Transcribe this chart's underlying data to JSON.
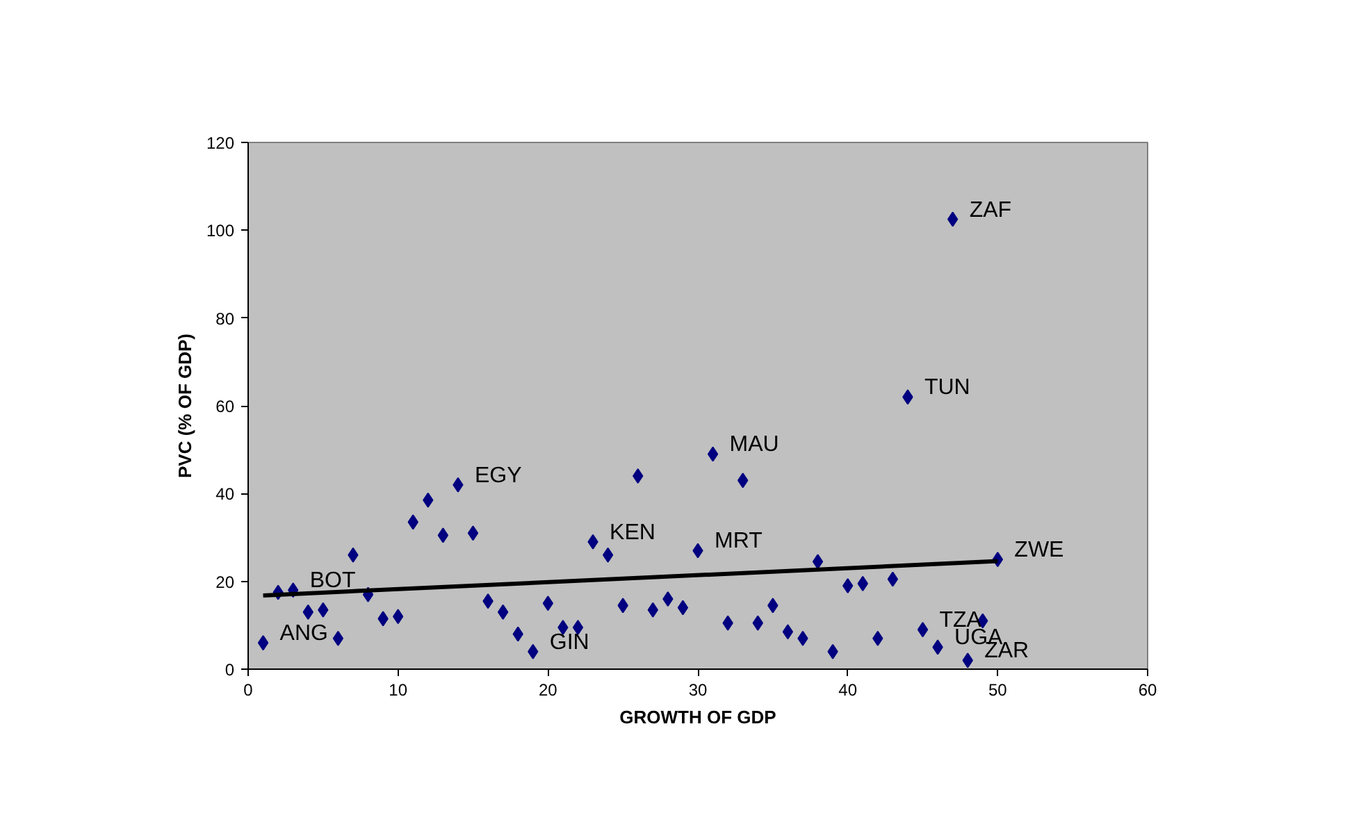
{
  "chart_data": {
    "type": "scatter",
    "xlabel": "GROWTH OF GDP",
    "ylabel": "PVC (% OF GDP)",
    "xlim": [
      0,
      60
    ],
    "xticks": [
      0,
      10,
      20,
      30,
      40,
      50,
      60
    ],
    "ylim": [
      0,
      120
    ],
    "yticks": [
      0,
      20,
      40,
      60,
      80,
      100,
      120
    ],
    "grid": false,
    "marker": "diamond",
    "series": [
      {
        "color": "#000080",
        "x": [
          1,
          2,
          3,
          4,
          5,
          6,
          7,
          8,
          9,
          10,
          11,
          12,
          13,
          14,
          15,
          16,
          17,
          18,
          19,
          20,
          21,
          22,
          23,
          24,
          25,
          26,
          27,
          28,
          29,
          30,
          31,
          32,
          33,
          34,
          35,
          36,
          37,
          38,
          39,
          40,
          41,
          42,
          43,
          44,
          45,
          46,
          47,
          48,
          49,
          50
        ],
        "values": [
          6,
          17.5,
          18,
          13,
          13.5,
          7,
          26,
          17,
          11.5,
          12,
          33.5,
          38.5,
          30.5,
          42,
          31,
          15.5,
          13,
          8,
          4,
          15,
          9.5,
          9.5,
          29,
          26,
          14.5,
          44,
          13.5,
          16,
          14,
          27,
          49,
          10.5,
          43,
          10.5,
          14.5,
          8.5,
          7,
          24.5,
          4,
          19,
          19.5,
          7,
          20.5,
          62,
          9,
          5,
          102.5,
          2,
          11,
          25
        ]
      },
      {
        "type": "line",
        "color": "#000000",
        "x": [
          1,
          50
        ],
        "values": [
          16.8,
          24.6
        ],
        "marker": "none"
      }
    ],
    "annotations": [
      {
        "text": "ANG",
        "x": 1,
        "y": 6
      },
      {
        "text": "BOT",
        "x": 3,
        "y": 18
      },
      {
        "text": "EGY",
        "x": 14,
        "y": 42
      },
      {
        "text": "GIN",
        "x": 19,
        "y": 4
      },
      {
        "text": "KEN",
        "x": 23,
        "y": 29
      },
      {
        "text": "MRT",
        "x": 30,
        "y": 27
      },
      {
        "text": "MAU",
        "x": 31,
        "y": 49
      },
      {
        "text": "TUN",
        "x": 44,
        "y": 62
      },
      {
        "text": "TZA",
        "x": 45,
        "y": 9
      },
      {
        "text": "UGA",
        "x": 46,
        "y": 5
      },
      {
        "text": "ZAF",
        "x": 47,
        "y": 102.5
      },
      {
        "text": "ZAR",
        "x": 48,
        "y": 2
      },
      {
        "text": "ZWE",
        "x": 50,
        "y": 25
      }
    ]
  }
}
